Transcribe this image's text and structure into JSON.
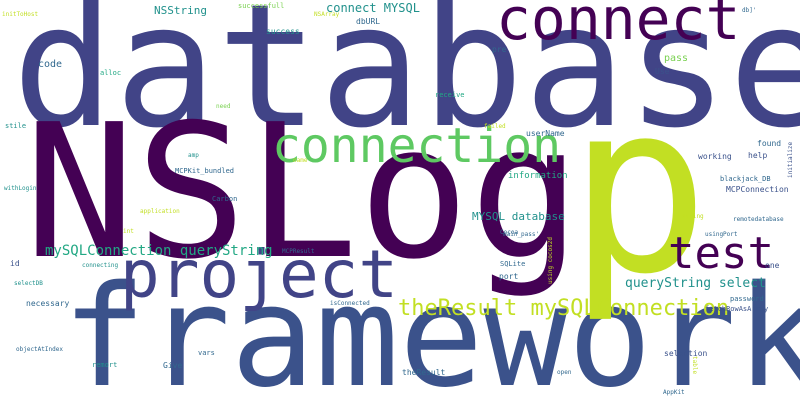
{
  "words": {
    "database": "database",
    "nslog": "NSLog",
    "framework": "framework",
    "p": "p",
    "connect": "connect",
    "connection": "connection",
    "project": "project",
    "test": "test",
    "theresult_mysqlconnection": "theResult mySQLConnection",
    "mysqlconnection_querystring": "mySQLConnection queryString",
    "querystring_select": "queryString select",
    "mysql_database": "MYSQL database",
    "connect_mysql": "connect MYSQL",
    "nsstring": "NSString",
    "code": "code",
    "pass": "pass",
    "dburl": "dbURL",
    "success": "success",
    "successfull": "successfull",
    "nsarray": "NSArray",
    "initwithhost": "initToHost",
    "pre": "pre",
    "use": "Use",
    "alloc": "alloc",
    "need": "need",
    "receive": "receive",
    "failed": "failed",
    "username": "userName",
    "stile": "stile",
    "found": "found",
    "help": "help",
    "initialize": "initialize",
    "working": "working",
    "amp": "amp",
    "name": "name",
    "mcpkit_bundled": "MCPKit_bundled",
    "information": "information",
    "blackjack_db": "blackjack_DB",
    "mcpconnection": "MCPConnection",
    "carbon": "Carbon",
    "withlogin": "withLogin",
    "application": "application",
    "remotedatabase": "remotedatabase",
    "string": "string",
    "int": "int",
    "cocoa": "Cocoa",
    "main_pass": "main_pass'",
    "using_cocos2d": "using cocos2d",
    "usingport": "usingPort",
    "id": "id",
    "connecting": "connecting",
    "mcpresult": "MCPResult",
    "sqlite": "SQLite",
    "one": "one",
    "port": "port",
    "selectdb": "selectDB",
    "necessary": "necessary",
    "isconnected": "isConnected",
    "password": "password",
    "fetchrowasarray": "fetchRowAsArray",
    "objectatindex": "objectAtIndex",
    "remort": "remort",
    "vars": "vars",
    "give": "Give",
    "theresult": "theResult",
    "open": "open",
    "table": "table",
    "selection": "selection",
    "appkit": "AppKit",
    "db": "db]'"
  },
  "colors": {
    "background": "#ffffff",
    "dark_purple": "#440154",
    "indigo": "#3b528b",
    "slate_blue": "#414487",
    "teal_blue": "#31688e",
    "teal": "#21918c",
    "sea_green": "#22a884",
    "green": "#5ec962",
    "light_green": "#7ad151",
    "lime": "#c2df23",
    "yellow": "#fde725"
  }
}
